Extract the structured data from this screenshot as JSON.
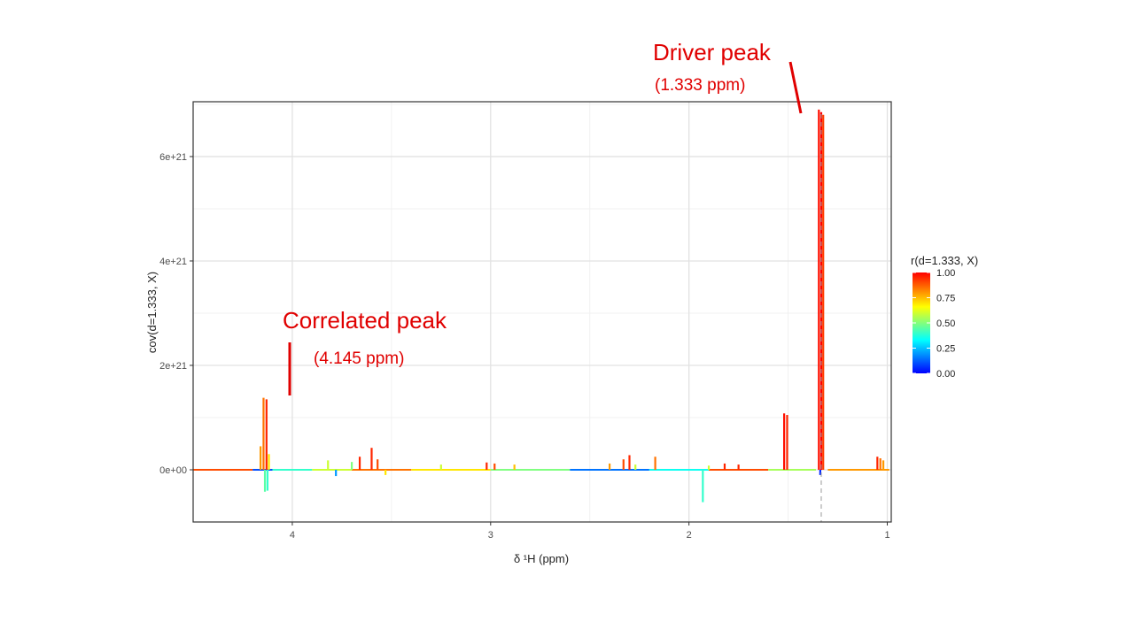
{
  "chart_data": {
    "type": "line",
    "title": "",
    "xlabel": "δ ¹H (ppm)",
    "ylabel": "cov(d=1.333, X)",
    "xlim": [
      4.5,
      0.98
    ],
    "ylim": [
      -1e+21,
      7.05e+21
    ],
    "x_reversed": true,
    "grid": true,
    "x_ticks": [
      {
        "value": 4,
        "label": "4"
      },
      {
        "value": 3,
        "label": "3"
      },
      {
        "value": 2,
        "label": "2"
      },
      {
        "value": 1,
        "label": "1"
      }
    ],
    "y_ticks": [
      {
        "value": 0,
        "label": "0e+00"
      },
      {
        "value": 2e+21,
        "label": "2e+21"
      },
      {
        "value": 4e+21,
        "label": "4e+21"
      },
      {
        "value": 6e+21,
        "label": "6e+21"
      }
    ],
    "driver_ppm": 1.333,
    "colorbar": {
      "title": "r(d=1.333, X)",
      "min": 0,
      "max": 1,
      "ticks": [
        {
          "value": 1.0,
          "label": "1.00"
        },
        {
          "value": 0.75,
          "label": "0.75"
        },
        {
          "value": 0.5,
          "label": "0.50"
        },
        {
          "value": 0.25,
          "label": "0.25"
        },
        {
          "value": 0.0,
          "label": "0.00"
        }
      ],
      "colors": [
        "#0000ff",
        "#00ffff",
        "#ffff00",
        "#ff0000"
      ]
    },
    "spikes": [
      {
        "x": 4.16,
        "y": 4.5e+20,
        "r": 0.8
      },
      {
        "x": 4.145,
        "y": 1.38e+21,
        "r": 0.85
      },
      {
        "x": 4.138,
        "y": -4.2e+20,
        "r": 0.45
      },
      {
        "x": 4.13,
        "y": 1.35e+21,
        "r": 0.95
      },
      {
        "x": 4.125,
        "y": -4e+20,
        "r": 0.4
      },
      {
        "x": 4.118,
        "y": 3e+20,
        "r": 0.7
      },
      {
        "x": 3.82,
        "y": 1.8e+20,
        "r": 0.6
      },
      {
        "x": 3.78,
        "y": -1.2e+20,
        "r": 0.2
      },
      {
        "x": 3.7,
        "y": 1.5e+20,
        "r": 0.5
      },
      {
        "x": 3.66,
        "y": 2.5e+20,
        "r": 0.95
      },
      {
        "x": 3.6,
        "y": 4.2e+20,
        "r": 0.95
      },
      {
        "x": 3.57,
        "y": 2e+20,
        "r": 0.9
      },
      {
        "x": 3.53,
        "y": -1e+20,
        "r": 0.7
      },
      {
        "x": 3.25,
        "y": 1e+20,
        "r": 0.6
      },
      {
        "x": 3.02,
        "y": 1.4e+20,
        "r": 0.95
      },
      {
        "x": 2.98,
        "y": 1.2e+20,
        "r": 0.9
      },
      {
        "x": 2.88,
        "y": 1e+20,
        "r": 0.75
      },
      {
        "x": 2.4,
        "y": 1.2e+20,
        "r": 0.8
      },
      {
        "x": 2.33,
        "y": 2e+20,
        "r": 0.9
      },
      {
        "x": 2.3,
        "y": 2.8e+20,
        "r": 0.95
      },
      {
        "x": 2.27,
        "y": 1e+20,
        "r": 0.6
      },
      {
        "x": 2.17,
        "y": 2.5e+20,
        "r": 0.85
      },
      {
        "x": 1.93,
        "y": -6.2e+20,
        "r": 0.4
      },
      {
        "x": 1.9,
        "y": 8e+19,
        "r": 0.6
      },
      {
        "x": 1.82,
        "y": 1.2e+20,
        "r": 0.95
      },
      {
        "x": 1.75,
        "y": 1e+20,
        "r": 0.95
      },
      {
        "x": 1.52,
        "y": 1.08e+21,
        "r": 0.98
      },
      {
        "x": 1.505,
        "y": 1.05e+21,
        "r": 0.95
      },
      {
        "x": 1.345,
        "y": 6.9e+21,
        "r": 0.98
      },
      {
        "x": 1.333,
        "y": 6.85e+21,
        "r": 1.0
      },
      {
        "x": 1.323,
        "y": 6.8e+21,
        "r": 0.92
      },
      {
        "x": 1.338,
        "y": -1e+20,
        "r": 0.05
      },
      {
        "x": 1.05,
        "y": 2.5e+20,
        "r": 0.95
      },
      {
        "x": 1.035,
        "y": 2.2e+20,
        "r": 0.85
      },
      {
        "x": 1.02,
        "y": 1.8e+20,
        "r": 0.8
      }
    ],
    "annotations": [
      {
        "title": "Driver peak",
        "sub": "(1.333 ppm)"
      },
      {
        "title": "Correlated peak",
        "sub": "(4.145 ppm)"
      }
    ]
  }
}
